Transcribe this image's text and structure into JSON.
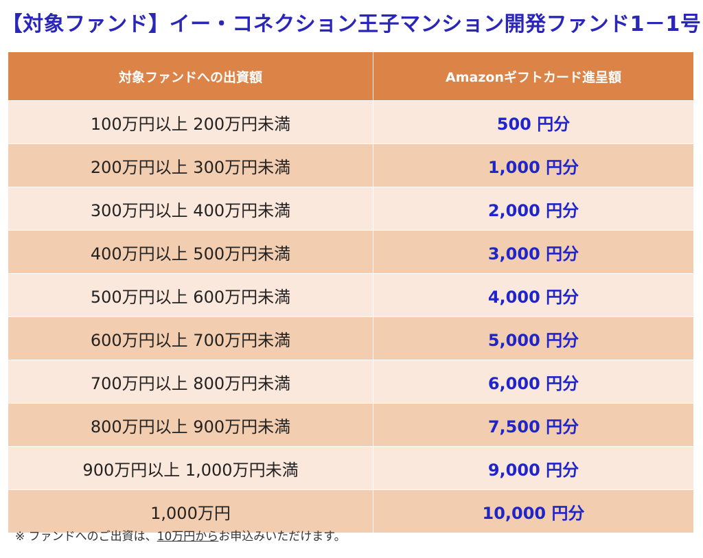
{
  "title": "【対象ファンド】イー・コネクション王子マンション開発ファンド1－1号",
  "table": {
    "headers": {
      "left": "対象ファンドへの出資額",
      "right": "Amazonギフトカード進呈額"
    },
    "rows": [
      {
        "range": "100万円以上 200万円未満",
        "gift": "500 円分"
      },
      {
        "range": "200万円以上 300万円未満",
        "gift": "1,000 円分"
      },
      {
        "range": "300万円以上 400万円未満",
        "gift": "2,000 円分"
      },
      {
        "range": "400万円以上 500万円未満",
        "gift": "3,000 円分"
      },
      {
        "range": "500万円以上 600万円未満",
        "gift": "4,000 円分"
      },
      {
        "range": "600万円以上 700万円未満",
        "gift": "5,000 円分"
      },
      {
        "range": "700万円以上 800万円未満",
        "gift": "6,000 円分"
      },
      {
        "range": "800万円以上 900万円未満",
        "gift": "7,500 円分"
      },
      {
        "range": "900万円以上 1,000万円未満",
        "gift": "9,000 円分"
      },
      {
        "range": "1,000万円",
        "gift": "10,000 円分"
      }
    ]
  },
  "footnote": {
    "prefix": "※ ファンドへのご出資は、",
    "underlined": "10万円から",
    "suffix": "お申込みいただけます。"
  },
  "colors": {
    "title": "#2a27b8",
    "header_bg": "#dc8347",
    "row_light": "#fbe8dc",
    "row_dark": "#f2cdb0",
    "gift_text": "#1f25c8"
  }
}
